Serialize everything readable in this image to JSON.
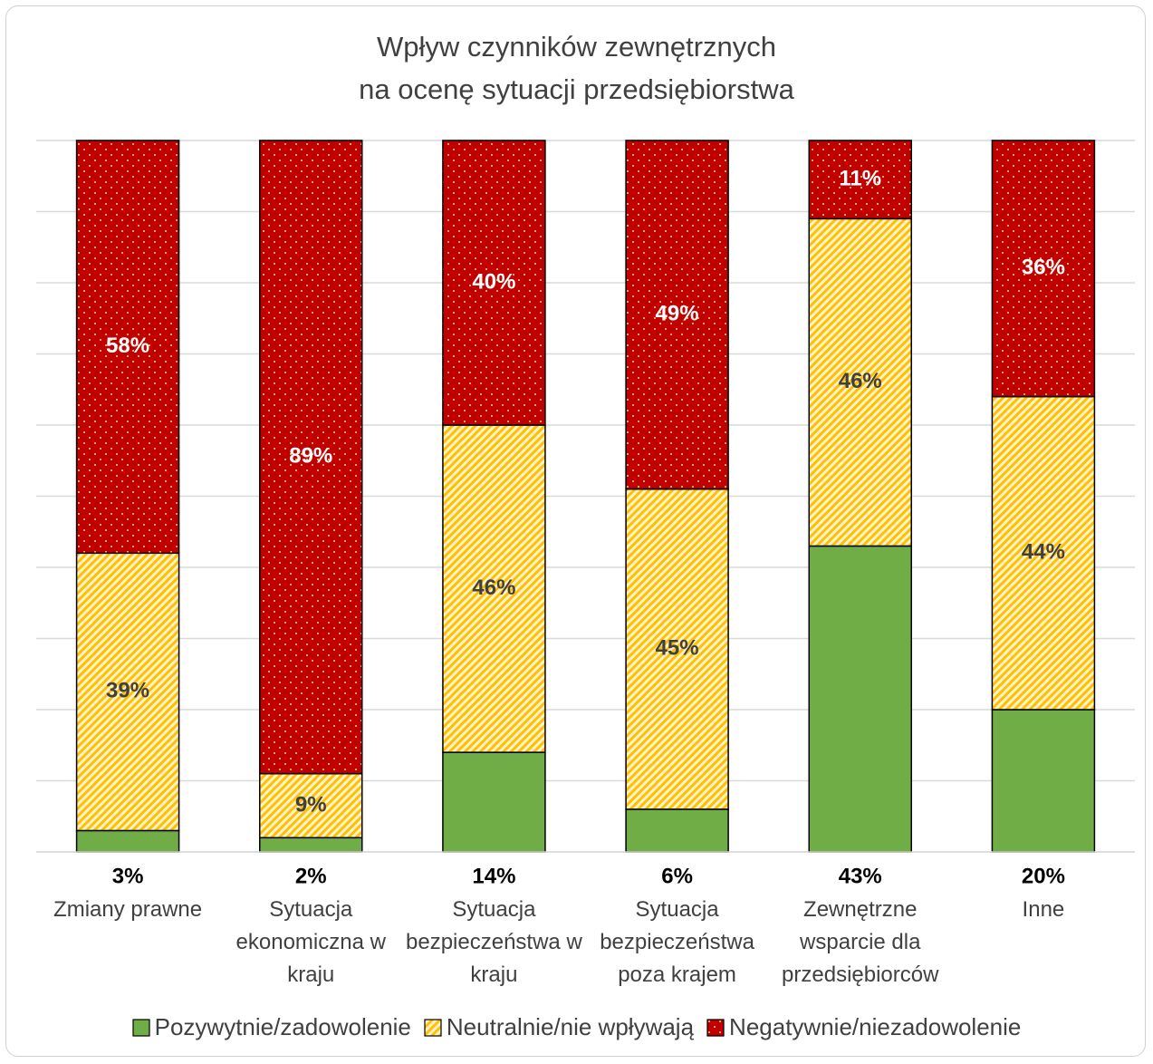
{
  "chart_data": {
    "type": "stacked_bar",
    "title": "Wpływ czynników zewnętrznych\nna ocenę sytuacji przedsiębiorstwa",
    "categories": [
      "Zmiany prawne",
      "Sytuacja ekonomiczna w kraju",
      "Sytuacja bezpieczeństwa w kraju",
      "Sytuacja bezpieczeństwa poza krajem",
      "Zewnętrzne wsparcie dla przedsiębiorców",
      "Inne"
    ],
    "series": [
      {
        "name": "Pozywytnie/zadowolenie",
        "color": "#70ad47",
        "pattern": "solid",
        "label_color": "#000000",
        "label_position": "below",
        "values": [
          3,
          2,
          14,
          6,
          43,
          20
        ],
        "value_labels": [
          "3%",
          "2%",
          "14%",
          "6%",
          "43%",
          "20%"
        ]
      },
      {
        "name": "Neutralnie/nie wpływają",
        "color": "#ffd966",
        "pattern": "stripes",
        "label_color": "#404040",
        "label_position": "center",
        "values": [
          39,
          9,
          46,
          45,
          46,
          44
        ],
        "value_labels": [
          "39%",
          "9%",
          "46%",
          "45%",
          "46%",
          "44%"
        ]
      },
      {
        "name": "Negatywnie/niezadowolenie",
        "color": "#c00000",
        "pattern": "dots",
        "label_color": "#ffffff",
        "label_position": "center",
        "values": [
          58,
          89,
          40,
          49,
          11,
          36
        ],
        "value_labels": [
          "58%",
          "89%",
          "40%",
          "49%",
          "11%",
          "36%"
        ]
      }
    ],
    "ylim": [
      0,
      100
    ],
    "yticks": [
      0,
      10,
      20,
      30,
      40,
      50,
      60,
      70,
      80,
      90,
      100
    ],
    "grid": true,
    "legend": "bottom"
  }
}
